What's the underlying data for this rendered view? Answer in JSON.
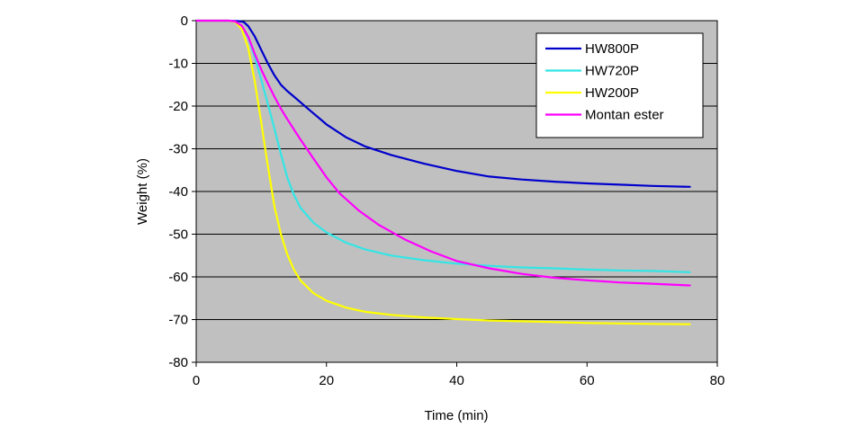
{
  "chart_data": {
    "type": "line",
    "title": "",
    "xlabel": "Time (min)",
    "ylabel": "Weight (%)",
    "xlim": [
      0,
      80
    ],
    "ylim": [
      -80,
      0
    ],
    "xticks": [
      0,
      20,
      40,
      60,
      80
    ],
    "yticks": [
      0,
      -10,
      -20,
      -30,
      -40,
      -50,
      -60,
      -70,
      -80
    ],
    "grid": "horizontal",
    "plot_background": "#c0c0c0",
    "legend_position": "top-right",
    "series": [
      {
        "name": "HW800P",
        "color": "#0000cc",
        "x": [
          0,
          5,
          6.5,
          7.3,
          8,
          9,
          10,
          11,
          12,
          13,
          14,
          15,
          17,
          20,
          23,
          26,
          30,
          35,
          40,
          45,
          50,
          55,
          60,
          65,
          70,
          75.8
        ],
        "y": [
          0,
          0,
          -0.1,
          -0.3,
          -1.3,
          -3.7,
          -6.9,
          -10,
          -12.8,
          -15,
          -16.5,
          -17.8,
          -20.4,
          -24.3,
          -27.3,
          -29.5,
          -31.5,
          -33.5,
          -35.2,
          -36.5,
          -37.2,
          -37.7,
          -38.1,
          -38.4,
          -38.7,
          -38.9
        ]
      },
      {
        "name": "HW720P",
        "color": "#33e5e5",
        "x": [
          0,
          5,
          6,
          7,
          8,
          9,
          10,
          11,
          12,
          13,
          14,
          15,
          16,
          18,
          20,
          23,
          26,
          30,
          35,
          40,
          45,
          50,
          55,
          60,
          65,
          70,
          75.8
        ],
        "y": [
          0,
          0,
          -0.2,
          -1.3,
          -4,
          -8.5,
          -13.9,
          -19.5,
          -25.3,
          -31.2,
          -36.8,
          -40.8,
          -43.8,
          -47.3,
          -49.6,
          -52,
          -53.6,
          -55,
          -56.1,
          -56.9,
          -57.4,
          -57.8,
          -58,
          -58.3,
          -58.5,
          -58.6,
          -58.9
        ]
      },
      {
        "name": "HW200P",
        "color": "#ffff00",
        "x": [
          0,
          5,
          6,
          7,
          8,
          9,
          10,
          11,
          12,
          13,
          14,
          15,
          16,
          18,
          20,
          23,
          26,
          30,
          35,
          40,
          45,
          50,
          55,
          60,
          65,
          70,
          75.8
        ],
        "y": [
          0,
          0,
          -0.3,
          -2,
          -6.5,
          -14.2,
          -24,
          -34,
          -43.5,
          -50,
          -54.8,
          -58.3,
          -60.8,
          -63.8,
          -65.6,
          -67.2,
          -68.2,
          -68.9,
          -69.5,
          -69.9,
          -70.2,
          -70.4,
          -70.6,
          -70.8,
          -70.9,
          -71,
          -71.1
        ]
      },
      {
        "name": "Montan ester",
        "color": "#ff00ff",
        "x": [
          0,
          5,
          6,
          7,
          8,
          9,
          10,
          11,
          12,
          13,
          14,
          16,
          18,
          20,
          22,
          25,
          28,
          32,
          36,
          40,
          45,
          50,
          55,
          60,
          65,
          70,
          75.8
        ],
        "y": [
          0,
          0,
          -0.2,
          -1.2,
          -3.8,
          -7.8,
          -11.5,
          -14.7,
          -17.8,
          -20.6,
          -23.1,
          -27.8,
          -32.3,
          -36.7,
          -40.4,
          -44.5,
          -47.8,
          -51.2,
          -54,
          -56.3,
          -58,
          -59.3,
          -60.2,
          -60.8,
          -61.3,
          -61.6,
          -62
        ]
      }
    ]
  }
}
